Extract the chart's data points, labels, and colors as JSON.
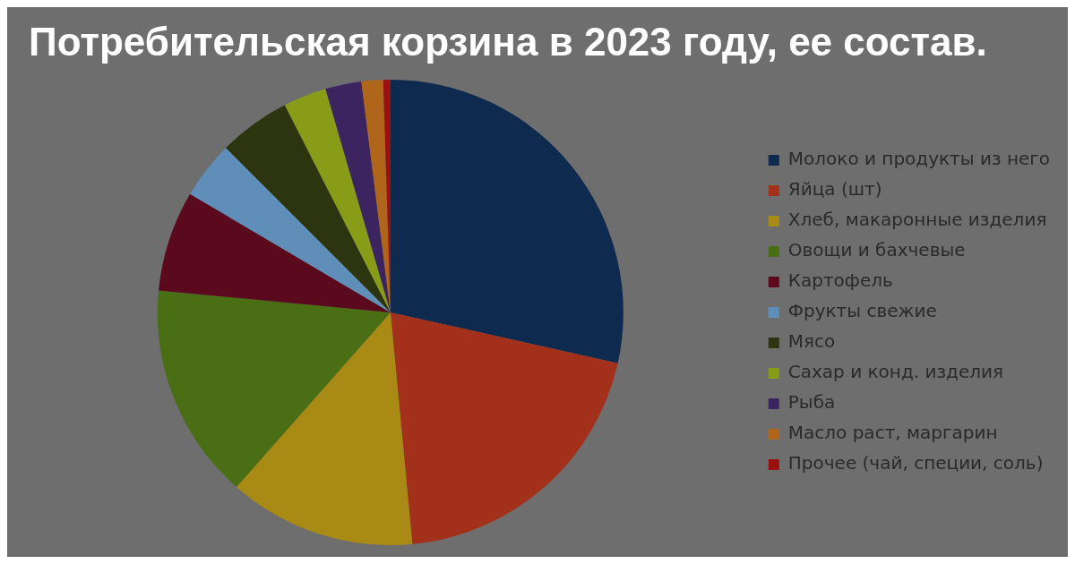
{
  "chart_data": {
    "type": "pie",
    "title": "Потребительская корзина в 2023 году, ее состав.",
    "categories": [
      "Молоко и продукты из него",
      "Яйца (шт)",
      "Хлеб, макаронные изделия",
      "Овощи и бахчевые",
      "Картофель",
      "Фрукты свежие",
      "Мясо",
      "Сахар и конд. изделия",
      "Рыба",
      "Масло раст, маргарин",
      "Прочее (чай, специи, соль)"
    ],
    "values": [
      28.5,
      20,
      13,
      15,
      7,
      4,
      5,
      3,
      2.5,
      1.5,
      0.5
    ],
    "colors": [
      "#0e2a4e",
      "#a3301a",
      "#a88a14",
      "#4a6e14",
      "#5a0a1c",
      "#5f8fb8",
      "#2c3410",
      "#889c18",
      "#3c2460",
      "#b0661a",
      "#9a1010"
    ],
    "legend": "right"
  }
}
